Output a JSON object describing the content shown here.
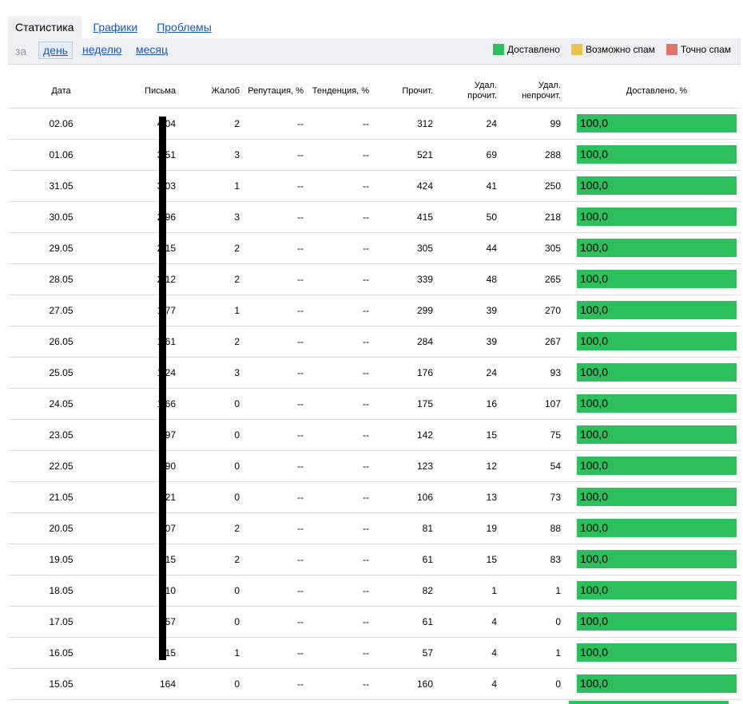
{
  "tabs": [
    {
      "label": "Статистика",
      "active": true
    },
    {
      "label": "Графики",
      "active": false
    },
    {
      "label": "Проблемы",
      "active": false
    }
  ],
  "period": {
    "label": "за",
    "options": [
      "день",
      "неделю",
      "месяц"
    ],
    "selected": "день"
  },
  "legend": [
    {
      "label": "Доставлено",
      "color": "#2dbf5c"
    },
    {
      "label": "Возможно спам",
      "color": "#e8c24a"
    },
    {
      "label": "Точно спам",
      "color": "#e3736d"
    }
  ],
  "columns": {
    "date": "Дата",
    "letters": "Письма",
    "complaints": "Жалоб",
    "reputation": "Репутация, %",
    "trend": "Тенденция, %",
    "read": "Прочит.",
    "deleted_read": "Удал.\nпрочит.",
    "deleted_unread": "Удал.\nнепрочит.",
    "delivered": "Доставлено, %"
  },
  "rows": [
    {
      "date": "02.06",
      "letters": "4 04",
      "complaints": "2",
      "reputation": "--",
      "trend": "--",
      "read": "312",
      "deleted_read": "24",
      "deleted_unread": "99",
      "delivered": "100,0"
    },
    {
      "date": "01.06",
      "letters": "3 51",
      "complaints": "3",
      "reputation": "--",
      "trend": "--",
      "read": "521",
      "deleted_read": "69",
      "deleted_unread": "288",
      "delivered": "100,0"
    },
    {
      "date": "31.05",
      "letters": "3 03",
      "complaints": "1",
      "reputation": "--",
      "trend": "--",
      "read": "424",
      "deleted_read": "41",
      "deleted_unread": "250",
      "delivered": "100,0"
    },
    {
      "date": "30.05",
      "letters": "2 96",
      "complaints": "3",
      "reputation": "--",
      "trend": "--",
      "read": "415",
      "deleted_read": "50",
      "deleted_unread": "218",
      "delivered": "100,0"
    },
    {
      "date": "29.05",
      "letters": "2 15",
      "complaints": "2",
      "reputation": "--",
      "trend": "--",
      "read": "305",
      "deleted_read": "44",
      "deleted_unread": "305",
      "delivered": "100,0"
    },
    {
      "date": "28.05",
      "letters": "2 12",
      "complaints": "2",
      "reputation": "--",
      "trend": "--",
      "read": "339",
      "deleted_read": "48",
      "deleted_unread": "265",
      "delivered": "100,0"
    },
    {
      "date": "27.05",
      "letters": "1 77",
      "complaints": "1",
      "reputation": "--",
      "trend": "--",
      "read": "299",
      "deleted_read": "39",
      "deleted_unread": "270",
      "delivered": "100,0"
    },
    {
      "date": "26.05",
      "letters": "1 61",
      "complaints": "2",
      "reputation": "--",
      "trend": "--",
      "read": "284",
      "deleted_read": "39",
      "deleted_unread": "267",
      "delivered": "100,0"
    },
    {
      "date": "25.05",
      "letters": "1 24",
      "complaints": "3",
      "reputation": "--",
      "trend": "--",
      "read": "176",
      "deleted_read": "24",
      "deleted_unread": "93",
      "delivered": "100,0"
    },
    {
      "date": "24.05",
      "letters": "1 66",
      "complaints": "0",
      "reputation": "--",
      "trend": "--",
      "read": "175",
      "deleted_read": "16",
      "deleted_unread": "107",
      "delivered": "100,0"
    },
    {
      "date": "23.05",
      "letters": "97",
      "complaints": "0",
      "reputation": "--",
      "trend": "--",
      "read": "142",
      "deleted_read": "15",
      "deleted_unread": "75",
      "delivered": "100,0"
    },
    {
      "date": "22.05",
      "letters": "90",
      "complaints": "0",
      "reputation": "--",
      "trend": "--",
      "read": "123",
      "deleted_read": "12",
      "deleted_unread": "54",
      "delivered": "100,0"
    },
    {
      "date": "21.05",
      "letters": "21",
      "complaints": "0",
      "reputation": "--",
      "trend": "--",
      "read": "106",
      "deleted_read": "13",
      "deleted_unread": "73",
      "delivered": "100,0"
    },
    {
      "date": "20.05",
      "letters": "07",
      "complaints": "2",
      "reputation": "--",
      "trend": "--",
      "read": "81",
      "deleted_read": "19",
      "deleted_unread": "88",
      "delivered": "100,0"
    },
    {
      "date": "19.05",
      "letters": "15",
      "complaints": "2",
      "reputation": "--",
      "trend": "--",
      "read": "61",
      "deleted_read": "15",
      "deleted_unread": "83",
      "delivered": "100,0"
    },
    {
      "date": "18.05",
      "letters": "10",
      "complaints": "0",
      "reputation": "--",
      "trend": "--",
      "read": "82",
      "deleted_read": "1",
      "deleted_unread": "1",
      "delivered": "100,0"
    },
    {
      "date": "17.05",
      "letters": "57",
      "complaints": "0",
      "reputation": "--",
      "trend": "--",
      "read": "61",
      "deleted_read": "4",
      "deleted_unread": "0",
      "delivered": "100,0"
    },
    {
      "date": "16.05",
      "letters": "15",
      "complaints": "1",
      "reputation": "--",
      "trend": "--",
      "read": "57",
      "deleted_read": "4",
      "deleted_unread": "1",
      "delivered": "100,0"
    },
    {
      "date": "15.05",
      "letters": "164",
      "complaints": "0",
      "reputation": "--",
      "trend": "--",
      "read": "160",
      "deleted_read": "4",
      "deleted_unread": "0",
      "delivered": "100,0"
    }
  ]
}
